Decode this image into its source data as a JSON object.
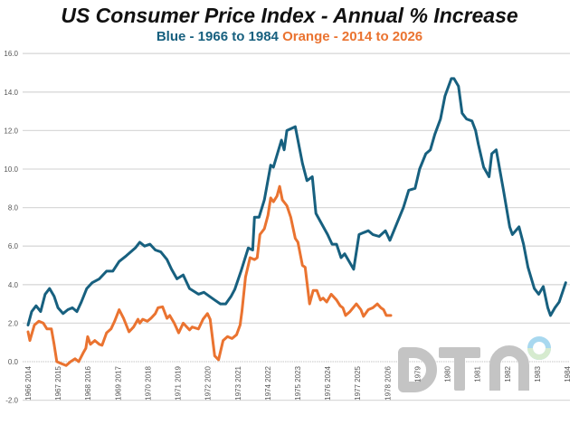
{
  "title": "US Consumer Price Index - Annual % Increase",
  "subtitle": {
    "blue": "Blue - 1966 to 1984",
    "orange": "Orange - 2014 to 2026"
  },
  "colors": {
    "blue": "#17607f",
    "orange": "#ea7330",
    "grid": "#d9d9d9"
  },
  "logo": {
    "text": "DTN"
  },
  "chart_data": {
    "type": "line",
    "ylim": [
      -2,
      16
    ],
    "yticks": [
      "16.0",
      "14.0",
      "12.0",
      "10.0",
      "8.0",
      "6.0",
      "4.0",
      "2.0",
      "0.0",
      "-2.0"
    ],
    "xlim": [
      1966,
      1984
    ],
    "xtick_labels": [
      "1966 2014",
      "1967 2015",
      "1968 2016",
      "1969 2017",
      "1970 2018",
      "1971 2019",
      "1972 2020",
      "1973 2021",
      "1974 2022",
      "1975 2023",
      "1976 2024",
      "1977 2025",
      "1978 2026",
      "1979",
      "1980",
      "1981",
      "1982",
      "1983",
      "1984"
    ],
    "grid": true,
    "series": [
      {
        "color": "blue",
        "x_offset_years": 0,
        "x": [
          1966.0,
          1966.12,
          1966.27,
          1966.42,
          1966.57,
          1966.72,
          1966.87,
          1967.0,
          1967.17,
          1967.33,
          1967.48,
          1967.63,
          1967.78,
          1967.96,
          1968.14,
          1968.38,
          1968.62,
          1968.83,
          1969.04,
          1969.28,
          1969.58,
          1969.73,
          1969.89,
          1970.07,
          1970.25,
          1970.43,
          1970.64,
          1970.79,
          1970.97,
          1971.18,
          1971.39,
          1971.69,
          1971.87,
          1972.05,
          1972.23,
          1972.42,
          1972.6,
          1972.78,
          1972.9,
          1973.11,
          1973.35,
          1973.5,
          1973.56,
          1973.71,
          1973.89,
          1974.1,
          1974.19,
          1974.46,
          1974.55,
          1974.64,
          1974.92,
          1975.16,
          1975.31,
          1975.49,
          1975.61,
          1976.0,
          1976.15,
          1976.3,
          1976.45,
          1976.57,
          1976.87,
          1977.05,
          1977.2,
          1977.36,
          1977.51,
          1977.72,
          1977.93,
          1978.08,
          1978.32,
          1978.53,
          1978.71,
          1978.92,
          1979.07,
          1979.28,
          1979.43,
          1979.58,
          1979.77,
          1979.92,
          1980.13,
          1980.22,
          1980.37,
          1980.49,
          1980.64,
          1980.82,
          1980.94,
          1981.03,
          1981.21,
          1981.39,
          1981.48,
          1981.63,
          1981.87,
          1982.08,
          1982.17,
          1982.39,
          1982.54,
          1982.69,
          1982.9,
          1983.05,
          1983.2,
          1983.35,
          1983.44,
          1983.59,
          1983.73,
          1983.95
        ],
        "y": [
          1.9,
          2.6,
          2.9,
          2.6,
          3.5,
          3.8,
          3.4,
          2.8,
          2.5,
          2.7,
          2.8,
          2.6,
          3.1,
          3.8,
          4.1,
          4.3,
          4.7,
          4.7,
          5.2,
          5.5,
          5.9,
          6.2,
          6.0,
          6.1,
          5.8,
          5.7,
          5.3,
          4.8,
          4.3,
          4.5,
          3.8,
          3.5,
          3.6,
          3.4,
          3.2,
          3.0,
          3.0,
          3.4,
          3.75,
          4.7,
          5.9,
          5.8,
          7.5,
          7.5,
          8.4,
          10.2,
          10.1,
          11.5,
          11.0,
          12.0,
          12.2,
          10.3,
          9.4,
          9.6,
          7.7,
          6.6,
          6.1,
          6.1,
          5.4,
          5.6,
          4.8,
          6.6,
          6.7,
          6.8,
          6.6,
          6.5,
          6.8,
          6.3,
          7.2,
          8.0,
          8.9,
          9.0,
          10.0,
          10.8,
          11.0,
          11.8,
          12.6,
          13.8,
          14.7,
          14.7,
          14.3,
          12.9,
          12.6,
          12.5,
          12.0,
          11.3,
          10.1,
          9.6,
          10.8,
          11.0,
          8.9,
          7.0,
          6.6,
          7.0,
          6.1,
          4.9,
          3.8,
          3.5,
          3.9,
          2.8,
          2.4,
          2.8,
          3.1,
          4.1
        ]
      },
      {
        "color": "orange",
        "x_offset_years": 48,
        "x": [
          2014.0,
          2014.06,
          2014.21,
          2014.36,
          2014.51,
          2014.63,
          2014.78,
          2014.87,
          2014.96,
          2015.11,
          2015.27,
          2015.42,
          2015.57,
          2015.69,
          2015.84,
          2015.93,
          2015.99,
          2016.08,
          2016.23,
          2016.38,
          2016.47,
          2016.62,
          2016.77,
          2016.89,
          2017.04,
          2017.19,
          2017.37,
          2017.52,
          2017.67,
          2017.73,
          2017.83,
          2017.98,
          2018.1,
          2018.25,
          2018.34,
          2018.49,
          2018.64,
          2018.73,
          2018.88,
          2019.03,
          2019.18,
          2019.39,
          2019.48,
          2019.69,
          2019.84,
          2019.99,
          2020.08,
          2020.23,
          2020.36,
          2020.51,
          2020.66,
          2020.81,
          2020.96,
          2021.08,
          2021.14,
          2021.26,
          2021.41,
          2021.56,
          2021.65,
          2021.74,
          2021.89,
          2022.01,
          2022.1,
          2022.19,
          2022.31,
          2022.4,
          2022.49,
          2022.64,
          2022.77,
          2022.92,
          2023.01,
          2023.16,
          2023.25,
          2023.4,
          2023.52,
          2023.64,
          2023.76,
          2023.85,
          2023.97,
          2024.12,
          2024.3,
          2024.42,
          2024.51,
          2024.6,
          2024.75,
          2024.96,
          2025.11,
          2025.2,
          2025.36,
          2025.51,
          2025.66,
          2025.78,
          2025.87,
          2025.96,
          2026.11
        ],
        "y": [
          1.55,
          1.1,
          1.9,
          2.1,
          2.0,
          1.7,
          1.7,
          0.9,
          0.0,
          -0.1,
          -0.2,
          0.0,
          0.15,
          0.0,
          0.45,
          0.7,
          1.3,
          0.9,
          1.1,
          0.9,
          0.85,
          1.5,
          1.7,
          2.1,
          2.7,
          2.25,
          1.55,
          1.8,
          2.2,
          2.0,
          2.2,
          2.1,
          2.25,
          2.5,
          2.8,
          2.85,
          2.25,
          2.4,
          2.0,
          1.5,
          2.0,
          1.65,
          1.8,
          1.7,
          2.2,
          2.5,
          2.2,
          0.3,
          0.1,
          1.1,
          1.3,
          1.2,
          1.4,
          1.9,
          2.6,
          4.4,
          5.4,
          5.3,
          5.4,
          6.6,
          6.9,
          7.6,
          8.5,
          8.3,
          8.6,
          9.1,
          8.4,
          8.1,
          7.5,
          6.4,
          6.2,
          5.0,
          4.9,
          3.0,
          3.7,
          3.7,
          3.2,
          3.3,
          3.1,
          3.5,
          3.2,
          2.9,
          2.8,
          2.4,
          2.6,
          3.0,
          2.7,
          2.35,
          2.7,
          2.8,
          3.0,
          2.8,
          2.7,
          2.4,
          2.4
        ]
      }
    ]
  }
}
